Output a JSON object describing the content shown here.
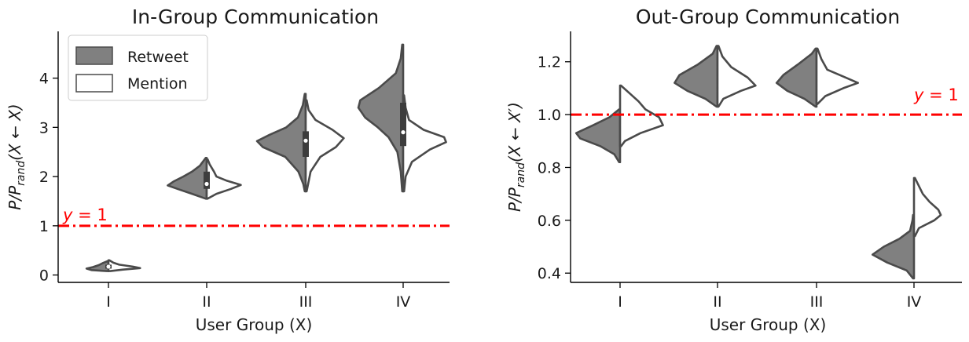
{
  "chart_data": [
    {
      "type": "violin",
      "title": "In-Group Communication",
      "xlabel": "User Group (X)",
      "ylabel": "P/P_rand(X←X)",
      "ylabel_parts": {
        "a": "P/P",
        "sub": "rand",
        "b": "(X ← X)"
      },
      "categories": [
        "I",
        "II",
        "III",
        "IV"
      ],
      "yticks": [
        0,
        1,
        2,
        3,
        4
      ],
      "ylim": [
        -0.15,
        4.95
      ],
      "grid": false,
      "legend": {
        "placement": "top-left",
        "entries": [
          {
            "name": "Retweet",
            "color": "#808080"
          },
          {
            "name": "Mention",
            "color": "#ffffff"
          }
        ]
      },
      "reference_line": {
        "y": 1,
        "label": "y = 1",
        "label_parts": {
          "v": "y",
          "rest": " = 1"
        },
        "color": "#ff0000"
      },
      "series": [
        {
          "name": "Retweet",
          "distributions": [
            {
              "category": "I",
              "min": 0.08,
              "max": 0.28,
              "points": [
                [
                  0.08,
                  0.04
                ],
                [
                  0.1,
                  0.35
                ],
                [
                  0.13,
                  0.45
                ],
                [
                  0.16,
                  0.32
                ],
                [
                  0.2,
                  0.2
                ],
                [
                  0.24,
                  0.12
                ],
                [
                  0.28,
                  0.02
                ]
              ]
            },
            {
              "category": "II",
              "min": 1.55,
              "max": 2.38,
              "points": [
                [
                  1.55,
                  0.02
                ],
                [
                  1.65,
                  0.3
                ],
                [
                  1.75,
                  0.6
                ],
                [
                  1.82,
                  0.8
                ],
                [
                  1.9,
                  0.68
                ],
                [
                  2.0,
                  0.48
                ],
                [
                  2.1,
                  0.3
                ],
                [
                  2.22,
                  0.14
                ],
                [
                  2.38,
                  0.02
                ]
              ]
            },
            {
              "category": "III",
              "min": 1.7,
              "max": 3.68,
              "points": [
                [
                  1.7,
                  0.02
                ],
                [
                  1.85,
                  0.05
                ],
                [
                  2.1,
                  0.15
                ],
                [
                  2.4,
                  0.42
                ],
                [
                  2.6,
                  0.88
                ],
                [
                  2.72,
                  1.0
                ],
                [
                  2.85,
                  0.74
                ],
                [
                  3.0,
                  0.4
                ],
                [
                  3.2,
                  0.16
                ],
                [
                  3.45,
                  0.06
                ],
                [
                  3.68,
                  0.02
                ]
              ]
            },
            {
              "category": "IV",
              "min": 1.7,
              "max": 4.68,
              "points": [
                [
                  1.7,
                  0.02
                ],
                [
                  2.1,
                  0.05
                ],
                [
                  2.5,
                  0.12
                ],
                [
                  2.8,
                  0.3
                ],
                [
                  3.0,
                  0.52
                ],
                [
                  3.2,
                  0.78
                ],
                [
                  3.4,
                  0.92
                ],
                [
                  3.55,
                  0.88
                ],
                [
                  3.8,
                  0.5
                ],
                [
                  4.1,
                  0.15
                ],
                [
                  4.4,
                  0.05
                ],
                [
                  4.68,
                  0.02
                ]
              ]
            }
          ]
        },
        {
          "name": "Mention",
          "distributions": [
            {
              "category": "I",
              "min": 0.08,
              "max": 0.3,
              "points": [
                [
                  0.08,
                  0.04
                ],
                [
                  0.11,
                  0.3
                ],
                [
                  0.14,
                  0.65
                ],
                [
                  0.17,
                  0.5
                ],
                [
                  0.21,
                  0.22
                ],
                [
                  0.25,
                  0.1
                ],
                [
                  0.3,
                  0.02
                ]
              ]
            },
            {
              "category": "II",
              "min": 1.55,
              "max": 2.35,
              "points": [
                [
                  1.55,
                  0.02
                ],
                [
                  1.65,
                  0.2
                ],
                [
                  1.75,
                  0.5
                ],
                [
                  1.83,
                  0.7
                ],
                [
                  1.92,
                  0.4
                ],
                [
                  2.0,
                  0.2
                ],
                [
                  2.1,
                  0.15
                ],
                [
                  2.25,
                  0.06
                ],
                [
                  2.35,
                  0.02
                ]
              ]
            },
            {
              "category": "III",
              "min": 1.7,
              "max": 3.55,
              "points": [
                [
                  1.7,
                  0.02
                ],
                [
                  1.85,
                  0.05
                ],
                [
                  2.1,
                  0.1
                ],
                [
                  2.4,
                  0.3
                ],
                [
                  2.6,
                  0.62
                ],
                [
                  2.78,
                  0.78
                ],
                [
                  2.95,
                  0.55
                ],
                [
                  3.15,
                  0.2
                ],
                [
                  3.35,
                  0.06
                ],
                [
                  3.55,
                  0.02
                ]
              ]
            },
            {
              "category": "IV",
              "min": 1.7,
              "max": 3.65,
              "points": [
                [
                  1.7,
                  0.02
                ],
                [
                  2.0,
                  0.05
                ],
                [
                  2.3,
                  0.18
                ],
                [
                  2.55,
                  0.55
                ],
                [
                  2.7,
                  0.88
                ],
                [
                  2.8,
                  0.84
                ],
                [
                  2.95,
                  0.42
                ],
                [
                  3.15,
                  0.12
                ],
                [
                  3.4,
                  0.05
                ],
                [
                  3.65,
                  0.02
                ]
              ]
            }
          ]
        }
      ],
      "boxplots": [
        {
          "category": "I",
          "q1": 0.13,
          "median": 0.17,
          "q3": 0.21
        },
        {
          "category": "II",
          "q1": 1.75,
          "median": 1.85,
          "q3": 2.1
        },
        {
          "category": "III",
          "q1": 2.4,
          "median": 2.73,
          "q3": 2.92
        },
        {
          "category": "IV",
          "q1": 2.62,
          "median": 2.9,
          "q3": 3.5
        }
      ]
    },
    {
      "type": "violin",
      "title": "Out-Group Communication",
      "xlabel": "User Group (X)",
      "ylabel": "P/P_rand(X←X')",
      "ylabel_parts": {
        "a": "P/P",
        "sub": "rand",
        "b": "(X ← X′)"
      },
      "categories": [
        "I",
        "II",
        "III",
        "IV"
      ],
      "yticks": [
        0.4,
        0.6,
        0.8,
        1.0,
        1.2
      ],
      "ytick_labels": [
        "0.4",
        "0.6",
        "0.8",
        "1.0",
        "1.2"
      ],
      "ylim": [
        0.365,
        1.315
      ],
      "grid": false,
      "reference_line": {
        "y": 1,
        "label": "y = 1",
        "label_parts": {
          "v": "y",
          "rest": " = 1"
        },
        "color": "#ff0000"
      },
      "series": [
        {
          "name": "Retweet",
          "distributions": [
            {
              "category": "I",
              "min": 0.82,
              "max": 1.02,
              "points": [
                [
                  0.82,
                  0.02
                ],
                [
                  0.85,
                  0.12
                ],
                [
                  0.88,
                  0.4
                ],
                [
                  0.91,
                  0.82
                ],
                [
                  0.93,
                  0.9
                ],
                [
                  0.96,
                  0.55
                ],
                [
                  0.99,
                  0.22
                ],
                [
                  1.02,
                  0.02
                ]
              ]
            },
            {
              "category": "II",
              "min": 1.03,
              "max": 1.26,
              "points": [
                [
                  1.03,
                  0.02
                ],
                [
                  1.06,
                  0.25
                ],
                [
                  1.09,
                  0.62
                ],
                [
                  1.12,
                  0.88
                ],
                [
                  1.15,
                  0.78
                ],
                [
                  1.19,
                  0.4
                ],
                [
                  1.23,
                  0.1
                ],
                [
                  1.26,
                  0.02
                ]
              ]
            },
            {
              "category": "III",
              "min": 1.03,
              "max": 1.25,
              "points": [
                [
                  1.03,
                  0.02
                ],
                [
                  1.06,
                  0.25
                ],
                [
                  1.09,
                  0.6
                ],
                [
                  1.12,
                  0.82
                ],
                [
                  1.15,
                  0.68
                ],
                [
                  1.19,
                  0.38
                ],
                [
                  1.23,
                  0.1
                ],
                [
                  1.25,
                  0.02
                ]
              ]
            },
            {
              "category": "IV",
              "min": 0.38,
              "max": 0.62,
              "points": [
                [
                  0.38,
                  0.02
                ],
                [
                  0.41,
                  0.15
                ],
                [
                  0.44,
                  0.55
                ],
                [
                  0.47,
                  0.85
                ],
                [
                  0.5,
                  0.62
                ],
                [
                  0.53,
                  0.3
                ],
                [
                  0.56,
                  0.08
                ],
                [
                  0.6,
                  0.03
                ],
                [
                  0.62,
                  0.02
                ]
              ]
            }
          ]
        },
        {
          "name": "Mention",
          "distributions": [
            {
              "category": "I",
              "min": 0.88,
              "max": 1.11,
              "points": [
                [
                  0.88,
                  0.02
                ],
                [
                  0.9,
                  0.1
                ],
                [
                  0.93,
                  0.42
                ],
                [
                  0.96,
                  0.88
                ],
                [
                  0.99,
                  0.8
                ],
                [
                  1.02,
                  0.52
                ],
                [
                  1.05,
                  0.38
                ],
                [
                  1.08,
                  0.2
                ],
                [
                  1.11,
                  0.02
                ]
              ]
            },
            {
              "category": "II",
              "min": 1.03,
              "max": 1.26,
              "points": [
                [
                  1.03,
                  0.02
                ],
                [
                  1.06,
                  0.12
                ],
                [
                  1.09,
                  0.48
                ],
                [
                  1.11,
                  0.78
                ],
                [
                  1.14,
                  0.62
                ],
                [
                  1.18,
                  0.28
                ],
                [
                  1.22,
                  0.1
                ],
                [
                  1.26,
                  0.02
                ]
              ]
            },
            {
              "category": "III",
              "min": 1.04,
              "max": 1.25,
              "points": [
                [
                  1.04,
                  0.02
                ],
                [
                  1.07,
                  0.18
                ],
                [
                  1.1,
                  0.55
                ],
                [
                  1.12,
                  0.85
                ],
                [
                  1.14,
                  0.6
                ],
                [
                  1.17,
                  0.22
                ],
                [
                  1.21,
                  0.1
                ],
                [
                  1.25,
                  0.02
                ]
              ]
            },
            {
              "category": "IV",
              "min": 0.54,
              "max": 0.76,
              "points": [
                [
                  0.54,
                  0.02
                ],
                [
                  0.57,
                  0.1
                ],
                [
                  0.6,
                  0.42
                ],
                [
                  0.62,
                  0.55
                ],
                [
                  0.64,
                  0.5
                ],
                [
                  0.67,
                  0.32
                ],
                [
                  0.7,
                  0.18
                ],
                [
                  0.73,
                  0.1
                ],
                [
                  0.76,
                  0.02
                ]
              ]
            }
          ]
        }
      ]
    }
  ]
}
